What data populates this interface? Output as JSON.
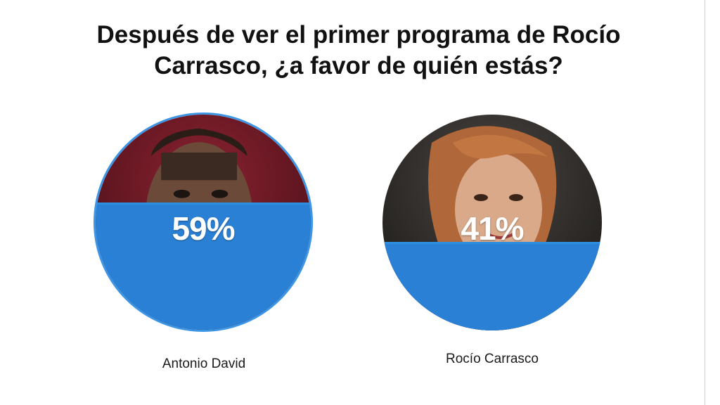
{
  "poll": {
    "question": "Después de ver el primer programa de Rocío Carrasco, ¿a favor de quién estás?",
    "options": [
      {
        "name": "Antonio David",
        "percent_label": "59%",
        "percent": 59,
        "fill_color": "#2a80d4",
        "border_color": "#3d95e6",
        "photo": "man-portrait"
      },
      {
        "name": "Rocío Carrasco",
        "percent_label": "41%",
        "percent": 41,
        "fill_color": "#2a80d4",
        "photo": "woman-portrait"
      }
    ]
  }
}
